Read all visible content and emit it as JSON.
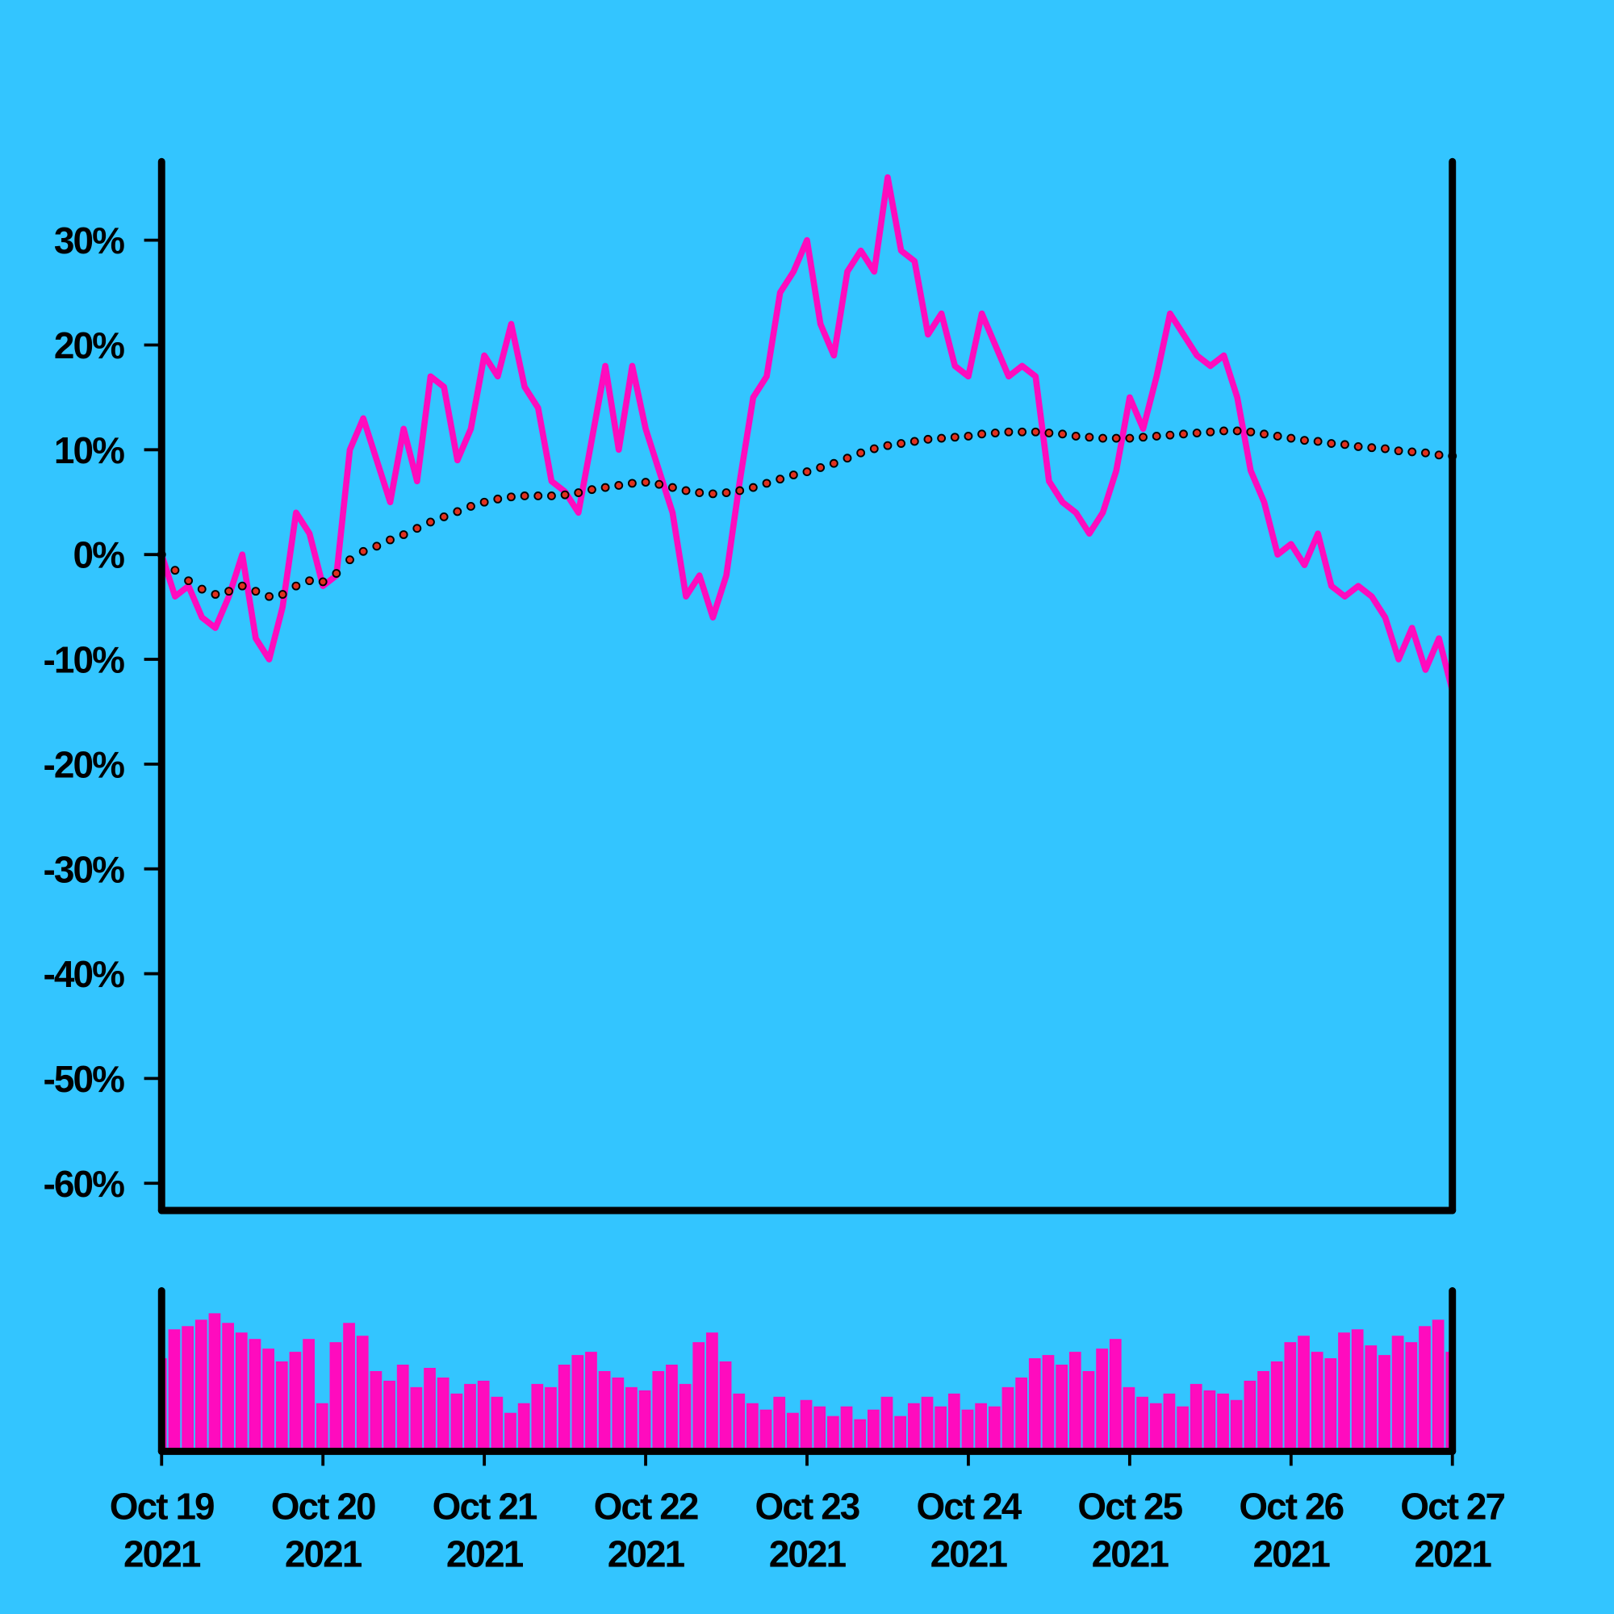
{
  "chart_data": {
    "type": "line",
    "x": [
      "2021-10-19 00:00",
      "2021-10-19 02:00",
      "2021-10-19 04:00",
      "2021-10-19 06:00",
      "2021-10-19 08:00",
      "2021-10-19 10:00",
      "2021-10-19 12:00",
      "2021-10-19 14:00",
      "2021-10-19 16:00",
      "2021-10-19 18:00",
      "2021-10-19 20:00",
      "2021-10-19 22:00",
      "2021-10-20 00:00",
      "2021-10-20 02:00",
      "2021-10-20 04:00",
      "2021-10-20 06:00",
      "2021-10-20 08:00",
      "2021-10-20 10:00",
      "2021-10-20 12:00",
      "2021-10-20 14:00",
      "2021-10-20 16:00",
      "2021-10-20 18:00",
      "2021-10-20 20:00",
      "2021-10-20 22:00",
      "2021-10-21 00:00",
      "2021-10-21 02:00",
      "2021-10-21 04:00",
      "2021-10-21 06:00",
      "2021-10-21 08:00",
      "2021-10-21 10:00",
      "2021-10-21 12:00",
      "2021-10-21 14:00",
      "2021-10-21 16:00",
      "2021-10-21 18:00",
      "2021-10-21 20:00",
      "2021-10-21 22:00",
      "2021-10-22 00:00",
      "2021-10-22 02:00",
      "2021-10-22 04:00",
      "2021-10-22 06:00",
      "2021-10-22 08:00",
      "2021-10-22 10:00",
      "2021-10-22 12:00",
      "2021-10-22 14:00",
      "2021-10-22 16:00",
      "2021-10-22 18:00",
      "2021-10-22 20:00",
      "2021-10-22 22:00",
      "2021-10-23 00:00",
      "2021-10-23 02:00",
      "2021-10-23 04:00",
      "2021-10-23 06:00",
      "2021-10-23 08:00",
      "2021-10-23 10:00",
      "2021-10-23 12:00",
      "2021-10-23 14:00",
      "2021-10-23 16:00",
      "2021-10-23 18:00",
      "2021-10-23 20:00",
      "2021-10-23 22:00",
      "2021-10-24 00:00",
      "2021-10-24 02:00",
      "2021-10-24 04:00",
      "2021-10-24 06:00",
      "2021-10-24 08:00",
      "2021-10-24 10:00",
      "2021-10-24 12:00",
      "2021-10-24 14:00",
      "2021-10-24 16:00",
      "2021-10-24 18:00",
      "2021-10-24 20:00",
      "2021-10-24 22:00",
      "2021-10-25 00:00",
      "2021-10-25 02:00",
      "2021-10-25 04:00",
      "2021-10-25 06:00",
      "2021-10-25 08:00",
      "2021-10-25 10:00",
      "2021-10-25 12:00",
      "2021-10-25 14:00",
      "2021-10-25 16:00",
      "2021-10-25 18:00",
      "2021-10-25 20:00",
      "2021-10-25 22:00",
      "2021-10-26 00:00",
      "2021-10-26 02:00",
      "2021-10-26 04:00",
      "2021-10-26 06:00",
      "2021-10-26 08:00",
      "2021-10-26 10:00",
      "2021-10-26 12:00",
      "2021-10-26 14:00",
      "2021-10-26 16:00",
      "2021-10-26 18:00",
      "2021-10-26 20:00",
      "2021-10-26 22:00",
      "2021-10-27 00:00"
    ],
    "series": [
      {
        "type": "line",
        "color": "#ff0bbe",
        "values": [
          0,
          -4,
          -3,
          -6,
          -7,
          -4,
          0,
          -8,
          -10,
          -5,
          4,
          2,
          -3,
          -2,
          10,
          13,
          9,
          5,
          12,
          7,
          17,
          16,
          9,
          12,
          19,
          17,
          22,
          16,
          14,
          7,
          6,
          4,
          11,
          18,
          10,
          18,
          12,
          8,
          4,
          -4,
          -2,
          -6,
          -2,
          7,
          15,
          17,
          25,
          27,
          30,
          22,
          19,
          27,
          29,
          27,
          36,
          29,
          28,
          21,
          23,
          18,
          17,
          23,
          20,
          17,
          18,
          17,
          7,
          5,
          4,
          2,
          4,
          8,
          15,
          12,
          17,
          23,
          21,
          19,
          18,
          19,
          15,
          8,
          5,
          0,
          1,
          -1,
          2,
          -3,
          -4,
          -3,
          -4,
          -6,
          -10,
          -7,
          -11,
          -8,
          -13
        ]
      },
      {
        "type": "dots",
        "color": "#e0301e",
        "values": [
          0,
          -1.5,
          -2.5,
          -3.3,
          -3.8,
          -3.5,
          -3,
          -3.5,
          -4,
          -3.8,
          -3,
          -2.5,
          -2.6,
          -1.8,
          -0.5,
          0.3,
          0.8,
          1.4,
          1.9,
          2.5,
          3.1,
          3.6,
          4.1,
          4.6,
          5,
          5.3,
          5.5,
          5.6,
          5.6,
          5.6,
          5.7,
          5.9,
          6.2,
          6.4,
          6.6,
          6.8,
          6.9,
          6.7,
          6.4,
          6.1,
          5.9,
          5.8,
          5.9,
          6.1,
          6.4,
          6.8,
          7.2,
          7.6,
          7.9,
          8.3,
          8.7,
          9.2,
          9.7,
          10.1,
          10.4,
          10.6,
          10.8,
          11,
          11.1,
          11.2,
          11.3,
          11.5,
          11.6,
          11.7,
          11.7,
          11.7,
          11.6,
          11.5,
          11.3,
          11.2,
          11.1,
          11.1,
          11.1,
          11.2,
          11.3,
          11.4,
          11.5,
          11.6,
          11.7,
          11.8,
          11.8,
          11.7,
          11.5,
          11.3,
          11.1,
          10.9,
          10.8,
          10.6,
          10.5,
          10.3,
          10.2,
          10.1,
          9.9,
          9.8,
          9.7,
          9.5,
          9.4
        ]
      },
      {
        "type": "bar",
        "axis": "y2",
        "color": "#ff0bbe",
        "values": [
          58,
          76,
          78,
          82,
          86,
          80,
          74,
          70,
          64,
          56,
          62,
          70,
          30,
          68,
          80,
          72,
          50,
          44,
          54,
          40,
          52,
          46,
          36,
          42,
          44,
          34,
          24,
          30,
          42,
          40,
          54,
          60,
          62,
          50,
          46,
          40,
          38,
          50,
          54,
          42,
          68,
          74,
          56,
          36,
          30,
          26,
          34,
          24,
          32,
          28,
          22,
          28,
          20,
          26,
          34,
          22,
          30,
          34,
          28,
          36,
          26,
          30,
          28,
          40,
          46,
          58,
          60,
          54,
          62,
          50,
          64,
          70,
          40,
          34,
          30,
          36,
          28,
          42,
          38,
          36,
          32,
          44,
          50,
          56,
          68,
          72,
          62,
          58,
          74,
          76,
          66,
          60,
          72,
          68,
          78,
          82,
          62
        ]
      }
    ],
    "xlim": [
      "2021-10-19 00:00",
      "2021-10-27 00:00"
    ],
    "xticks": [
      {
        "value": "2021-10-19 00:00",
        "label": [
          "Oct 19",
          "2021"
        ]
      },
      {
        "value": "2021-10-20 00:00",
        "label": [
          "Oct 20",
          "2021"
        ]
      },
      {
        "value": "2021-10-21 00:00",
        "label": [
          "Oct 21",
          "2021"
        ]
      },
      {
        "value": "2021-10-22 00:00",
        "label": [
          "Oct 22",
          "2021"
        ]
      },
      {
        "value": "2021-10-23 00:00",
        "label": [
          "Oct 23",
          "2021"
        ]
      },
      {
        "value": "2021-10-24 00:00",
        "label": [
          "Oct 24",
          "2021"
        ]
      },
      {
        "value": "2021-10-25 00:00",
        "label": [
          "Oct 25",
          "2021"
        ]
      },
      {
        "value": "2021-10-26 00:00",
        "label": [
          "Oct 26",
          "2021"
        ]
      },
      {
        "value": "2021-10-27 00:00",
        "label": [
          "Oct 27",
          "2021"
        ]
      }
    ],
    "ylim": [
      -62.6,
      37.5
    ],
    "yticks": [
      {
        "value": 30,
        "label": "30%"
      },
      {
        "value": 20,
        "label": "20%"
      },
      {
        "value": 10,
        "label": "10%"
      },
      {
        "value": 0,
        "label": "0%"
      },
      {
        "value": -10,
        "label": "-10%"
      },
      {
        "value": -20,
        "label": "-20%"
      },
      {
        "value": -30,
        "label": "-30%"
      },
      {
        "value": -40,
        "label": "-40%"
      },
      {
        "value": -50,
        "label": "-50%"
      },
      {
        "value": -60,
        "label": "-60%"
      }
    ],
    "y2lim": [
      0,
      100
    ]
  }
}
